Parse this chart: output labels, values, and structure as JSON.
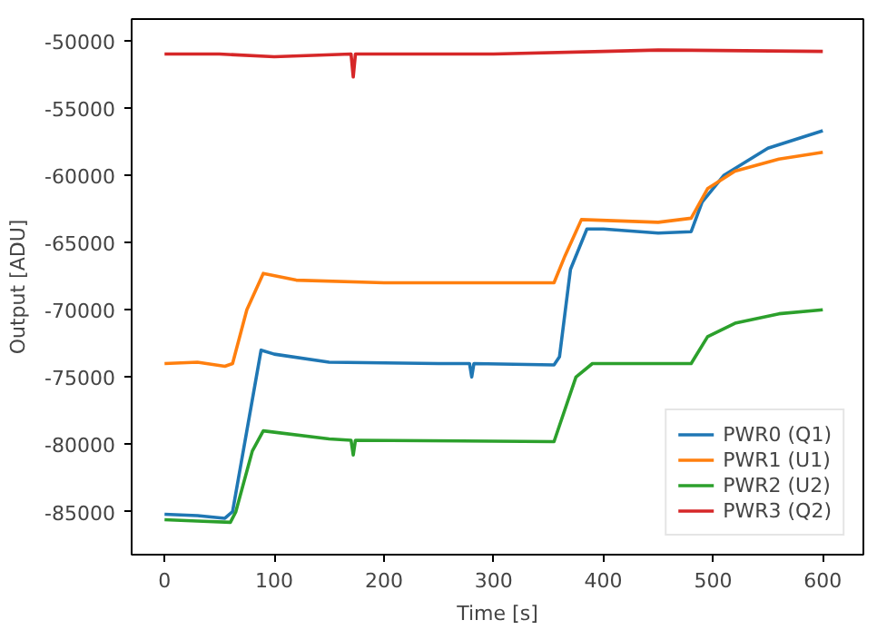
{
  "chart_data": {
    "type": "line",
    "xlabel": "Time [s]",
    "ylabel": "Output [ADU]",
    "xlim": [
      -30,
      637
    ],
    "ylim": [
      -88200,
      -48400
    ],
    "xticks": [
      0,
      100,
      200,
      300,
      400,
      500,
      600
    ],
    "yticks": [
      -85000,
      -80000,
      -75000,
      -70000,
      -65000,
      -60000,
      -55000,
      -50000
    ],
    "grid": false,
    "legend": "bottom right",
    "line_style": "solid",
    "marker": "none",
    "series": [
      {
        "name": "PWR0 (Q1)",
        "color": "#1f77b4",
        "x": [
          0,
          30,
          55,
          62,
          75,
          88,
          100,
          150,
          250,
          278,
          280,
          282,
          355,
          360,
          370,
          385,
          400,
          450,
          480,
          490,
          510,
          550,
          600
        ],
        "values": [
          -85200,
          -85300,
          -85500,
          -85000,
          -79000,
          -73000,
          -73300,
          -73900,
          -74000,
          -74000,
          -75000,
          -74000,
          -74100,
          -73500,
          -67000,
          -64000,
          -64000,
          -64300,
          -64200,
          -62000,
          -60000,
          -58000,
          -56700
        ]
      },
      {
        "name": "PWR1 (U1)",
        "color": "#ff7f0e",
        "x": [
          0,
          30,
          55,
          62,
          75,
          90,
          120,
          200,
          355,
          365,
          380,
          450,
          480,
          495,
          520,
          560,
          600
        ],
        "values": [
          -74000,
          -73900,
          -74200,
          -74000,
          -70000,
          -67300,
          -67800,
          -68000,
          -68000,
          -66000,
          -63300,
          -63500,
          -63200,
          -61000,
          -59700,
          -58800,
          -58300
        ]
      },
      {
        "name": "PWR2 (U2)",
        "color": "#2ca02c",
        "x": [
          0,
          30,
          60,
          65,
          80,
          90,
          150,
          170,
          172,
          174,
          355,
          375,
          390,
          480,
          495,
          520,
          560,
          600
        ],
        "values": [
          -85600,
          -85700,
          -85800,
          -85000,
          -80500,
          -79000,
          -79600,
          -79700,
          -80800,
          -79700,
          -79800,
          -75000,
          -74000,
          -74000,
          -72000,
          -71000,
          -70300,
          -70000
        ]
      },
      {
        "name": "PWR3 (Q2)",
        "color": "#d62728",
        "x": [
          0,
          50,
          100,
          170,
          172,
          174,
          300,
          400,
          450,
          600
        ],
        "values": [
          -51000,
          -51000,
          -51200,
          -51000,
          -52700,
          -51000,
          -51000,
          -50800,
          -50700,
          -50800
        ]
      }
    ]
  }
}
